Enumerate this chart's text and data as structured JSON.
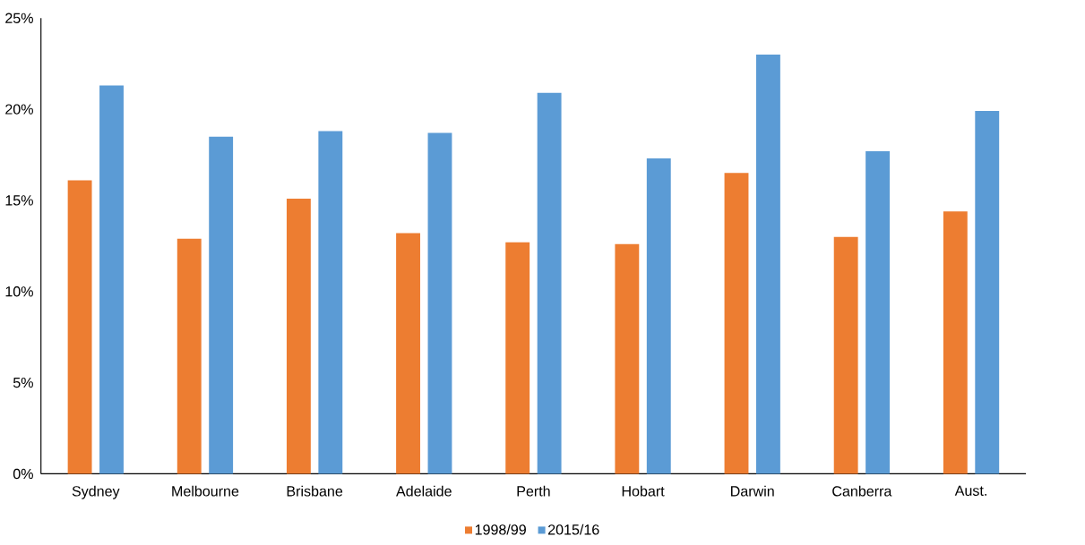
{
  "chart_data": {
    "type": "bar",
    "categories": [
      "Sydney",
      "Melbourne",
      "Brisbane",
      "Adelaide",
      "Perth",
      "Hobart",
      "Darwin",
      "Canberra",
      "Aust."
    ],
    "series": [
      {
        "name": "1998/99",
        "color": "#ed7d31",
        "values": [
          16.1,
          12.9,
          15.1,
          13.2,
          12.7,
          12.6,
          16.5,
          13.0,
          14.4
        ]
      },
      {
        "name": "2015/16",
        "color": "#5b9bd5",
        "values": [
          21.3,
          18.5,
          18.8,
          18.7,
          20.9,
          17.3,
          23.0,
          17.7,
          19.9
        ]
      }
    ],
    "ylim": [
      0,
      25
    ],
    "yticks": [
      {
        "value": 0,
        "label": "0%"
      },
      {
        "value": 5,
        "label": "5%"
      },
      {
        "value": 10,
        "label": "10%"
      },
      {
        "value": 15,
        "label": "15%"
      },
      {
        "value": 20,
        "label": "20%"
      },
      {
        "value": 25,
        "label": "25%"
      }
    ],
    "grid": false,
    "legend": "bottom"
  }
}
